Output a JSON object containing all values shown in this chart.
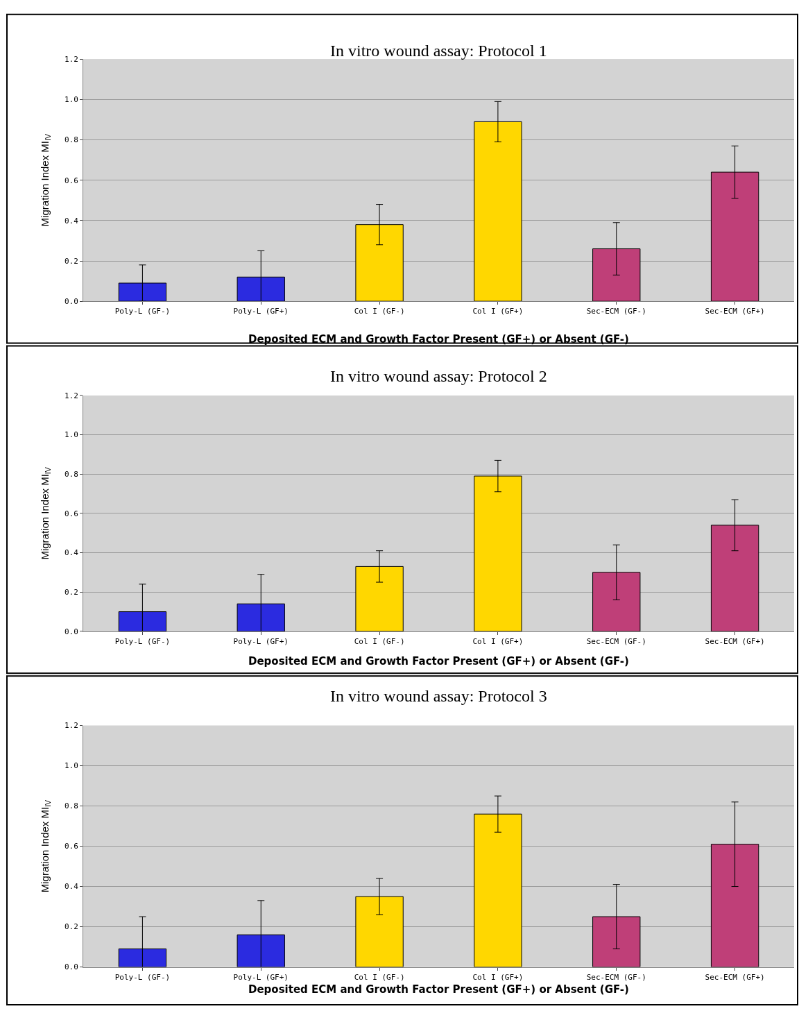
{
  "chart_data": [
    {
      "type": "bar",
      "title": "In vitro wound assay: Protocol 1",
      "xlabel": "Deposited ECM and Growth Factor Present (GF+) or Absent (GF-)",
      "ylabel": "Migration Index MI$_{IV}$",
      "categories": [
        "Poly-L (GF-)",
        "Poly-L (GF+)",
        "Col I (GF-)",
        "Col I (GF+)",
        "Sec-ECM (GF-)",
        "Sec-ECM (GF+)"
      ],
      "values": [
        0.09,
        0.12,
        0.38,
        0.89,
        0.26,
        0.64
      ],
      "errors": [
        0.09,
        0.13,
        0.1,
        0.1,
        0.13,
        0.13
      ],
      "colors": [
        "#2b2be0",
        "#2b2be0",
        "#ffd700",
        "#ffd700",
        "#bf3f78",
        "#bf3f78"
      ],
      "ylim": [
        0,
        1.2
      ],
      "yticks": [
        {
          "value": 0,
          "label": "0.0"
        },
        {
          "value": 0.2,
          "label": "0.2"
        },
        {
          "value": 0.4,
          "label": "0.4"
        },
        {
          "value": 0.6,
          "label": "0.6"
        },
        {
          "value": 0.8,
          "label": "0.8"
        },
        {
          "value": 1.0,
          "label": "1.0"
        },
        {
          "value": 1.2,
          "label": "1.2"
        }
      ],
      "grid": "y"
    },
    {
      "type": "bar",
      "title": "In vitro wound assay: Protocol 2",
      "xlabel": "Deposited ECM and Growth Factor Present (GF+) or Absent (GF-)",
      "ylabel": "Migration Index MI$_{IV}$",
      "categories": [
        "Poly-L (GF-)",
        "Poly-L (GF+)",
        "Col I (GF-)",
        "Col I (GF+)",
        "Sec-ECM (GF-)",
        "Sec-ECM (GF+)"
      ],
      "values": [
        0.1,
        0.14,
        0.33,
        0.79,
        0.3,
        0.54
      ],
      "errors": [
        0.14,
        0.15,
        0.08,
        0.08,
        0.14,
        0.13
      ],
      "colors": [
        "#2b2be0",
        "#2b2be0",
        "#ffd700",
        "#ffd700",
        "#bf3f78",
        "#bf3f78"
      ],
      "ylim": [
        0,
        1.2
      ],
      "yticks": [
        {
          "value": 0,
          "label": "0.0"
        },
        {
          "value": 0.2,
          "label": "0.2"
        },
        {
          "value": 0.4,
          "label": "0.4"
        },
        {
          "value": 0.6,
          "label": "0.6"
        },
        {
          "value": 0.8,
          "label": "0.8"
        },
        {
          "value": 1.0,
          "label": "1.0"
        },
        {
          "value": 1.2,
          "label": "1.2"
        }
      ],
      "grid": "y"
    },
    {
      "type": "bar",
      "title": "In vitro wound assay: Protocol 3",
      "xlabel": "Deposited ECM and Growth Factor Present (GF+) or Absent (GF-)",
      "ylabel": "Migration Index MI$_{IV}$",
      "categories": [
        "Poly-L (GF-)",
        "Poly-L (GF+)",
        "Col I (GF-)",
        "Col I (GF+)",
        "Sec-ECM (GF-)",
        "Sec-ECM (GF+)"
      ],
      "values": [
        0.09,
        0.16,
        0.35,
        0.76,
        0.25,
        0.61
      ],
      "errors": [
        0.16,
        0.17,
        0.09,
        0.09,
        0.16,
        0.21
      ],
      "colors": [
        "#2b2be0",
        "#2b2be0",
        "#ffd700",
        "#ffd700",
        "#bf3f78",
        "#bf3f78"
      ],
      "ylim": [
        0,
        1.2
      ],
      "yticks": [
        {
          "value": 0,
          "label": "0.0"
        },
        {
          "value": 0.2,
          "label": "0.2"
        },
        {
          "value": 0.4,
          "label": "0.4"
        },
        {
          "value": 0.6,
          "label": "0.6"
        },
        {
          "value": 0.8,
          "label": "0.8"
        },
        {
          "value": 1.0,
          "label": "1.0"
        },
        {
          "value": 1.2,
          "label": "1.2"
        }
      ],
      "grid": "y"
    }
  ]
}
